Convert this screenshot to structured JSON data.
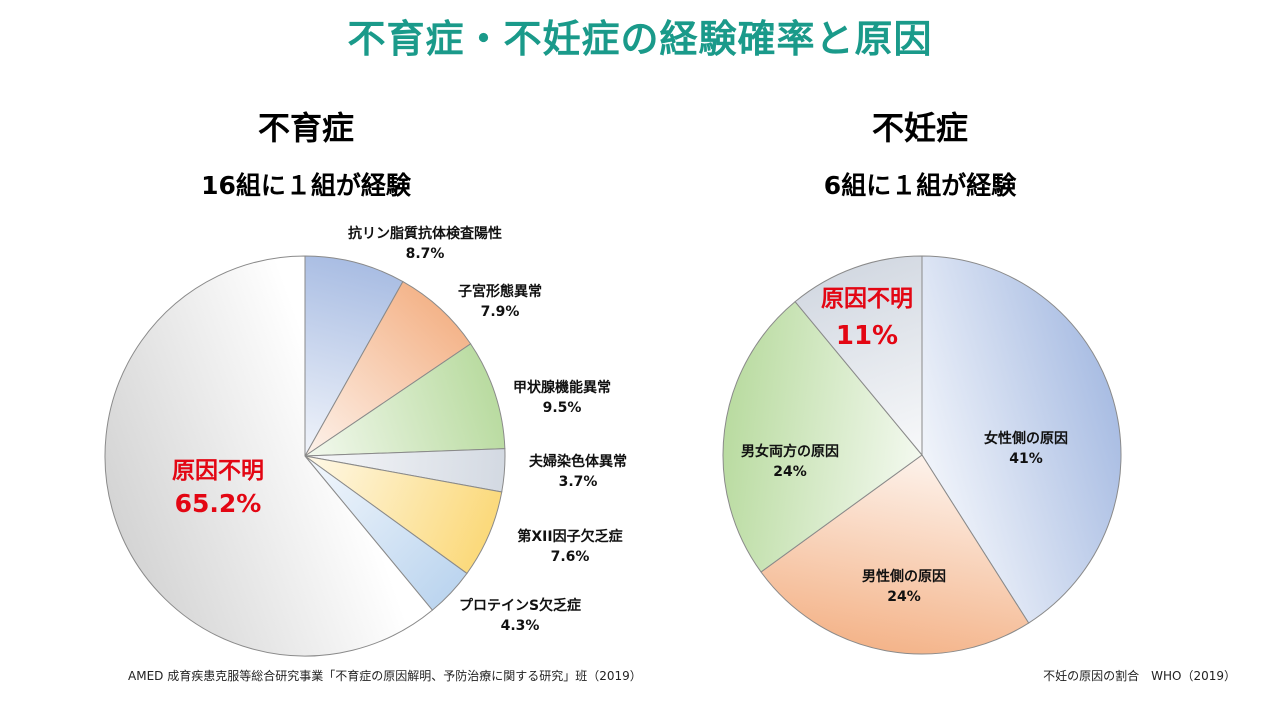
{
  "title": "不育症・不妊症の経験確率と原因",
  "chart_data": [
    {
      "type": "pie",
      "title": "不育症",
      "subtitle": "16組に１組が経験",
      "source": "AMED 成育疾患克服等総合研究事業「不育症の原因解明、予防治療に関する研究」班（2019）",
      "slices": [
        {
          "label": "抗リン脂質抗体検査陽性",
          "value": 8.7,
          "value_label": "8.7%",
          "color": "#a9bde3"
        },
        {
          "label": "子宮形態異常",
          "value": 7.9,
          "value_label": "7.9%",
          "color": "#f4b48a"
        },
        {
          "label": "甲状腺機能異常",
          "value": 9.5,
          "value_label": "9.5%",
          "color": "#b9dba0"
        },
        {
          "label": "夫婦染色体異常",
          "value": 3.7,
          "value_label": "3.7%",
          "color": "#d3d9e2"
        },
        {
          "label": "第XII因子欠乏症",
          "value": 7.6,
          "value_label": "7.6%",
          "color": "#fbd97a"
        },
        {
          "label": "プロテインS欠乏症",
          "value": 4.3,
          "value_label": "4.3%",
          "color": "#bcd5ef"
        },
        {
          "label": "原因不明",
          "value": 65.2,
          "value_label": "65.2%",
          "color": "#d4d4d4",
          "highlight": true
        }
      ]
    },
    {
      "type": "pie",
      "title": "不妊症",
      "subtitle": "6組に１組が経験",
      "source": "不妊の原因の割合　WHO（2019）",
      "slices": [
        {
          "label": "女性側の原因",
          "value": 41,
          "value_label": "41%",
          "color": "#a9bde3"
        },
        {
          "label": "男性側の原因",
          "value": 24,
          "value_label": "24%",
          "color": "#f4b48a"
        },
        {
          "label": "男女両方の原因",
          "value": 24,
          "value_label": "24%",
          "color": "#b9dba0"
        },
        {
          "label": "原因不明",
          "value": 11,
          "value_label": "11%",
          "color": "#d3d9e2",
          "highlight": true
        }
      ]
    }
  ]
}
